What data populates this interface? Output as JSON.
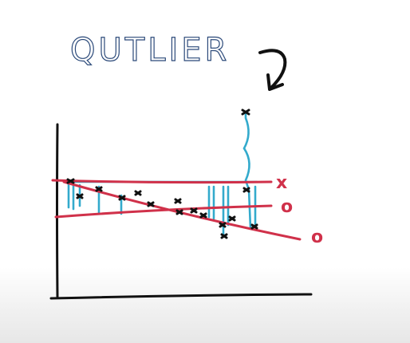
{
  "title": {
    "text": "QUTLIER",
    "color": "#2c4a7a"
  },
  "annotations": {
    "arrow_color": "#111111",
    "line_labels": [
      {
        "label": "x",
        "color": "#d0314a"
      },
      {
        "label": "o",
        "color": "#d0314a"
      },
      {
        "label": "o",
        "color": "#d0314a"
      }
    ]
  },
  "colors": {
    "axis": "#111111",
    "regression_line": "#d0314a",
    "residual_line": "#33aacc",
    "point": "#111111"
  }
}
